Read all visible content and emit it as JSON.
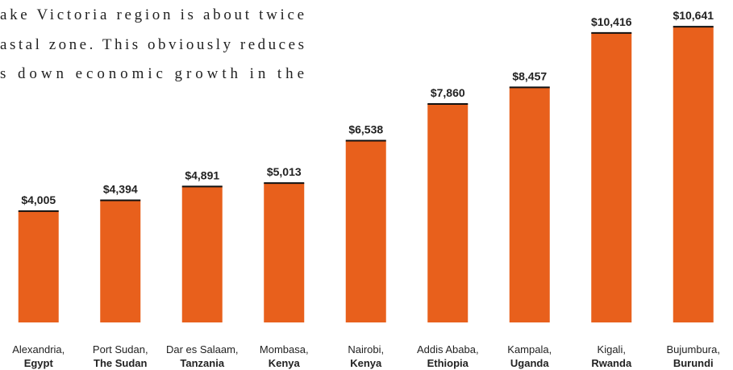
{
  "text_lines": [
    "ake Victoria region is about twice",
    "astal zone. This obviously reduces",
    "s down economic growth in the"
  ],
  "chart_data": {
    "type": "bar",
    "categories": [
      "Alexandria,",
      "Port Sudan,",
      "Dar es Salaam,",
      "Mombasa,",
      "Nairobi,",
      "Addis Ababa,",
      "Kampala,",
      "Kigali,",
      "Bujumbura,"
    ],
    "countries": [
      "Egypt",
      "The Sudan",
      "Tanzania",
      "Kenya",
      "Kenya",
      "Ethiopia",
      "Uganda",
      "Rwanda",
      "Burundi"
    ],
    "values": [
      4005,
      4394,
      4891,
      5013,
      6538,
      7860,
      8457,
      10416,
      10641
    ],
    "value_labels": [
      "$4,005",
      "$4,394",
      "$4,891",
      "$5,013",
      "$6,538",
      "$7,860",
      "$8,457",
      "$10,416",
      "$10,641"
    ],
    "color": "#e8601c",
    "ylim": [
      0,
      11600
    ]
  }
}
